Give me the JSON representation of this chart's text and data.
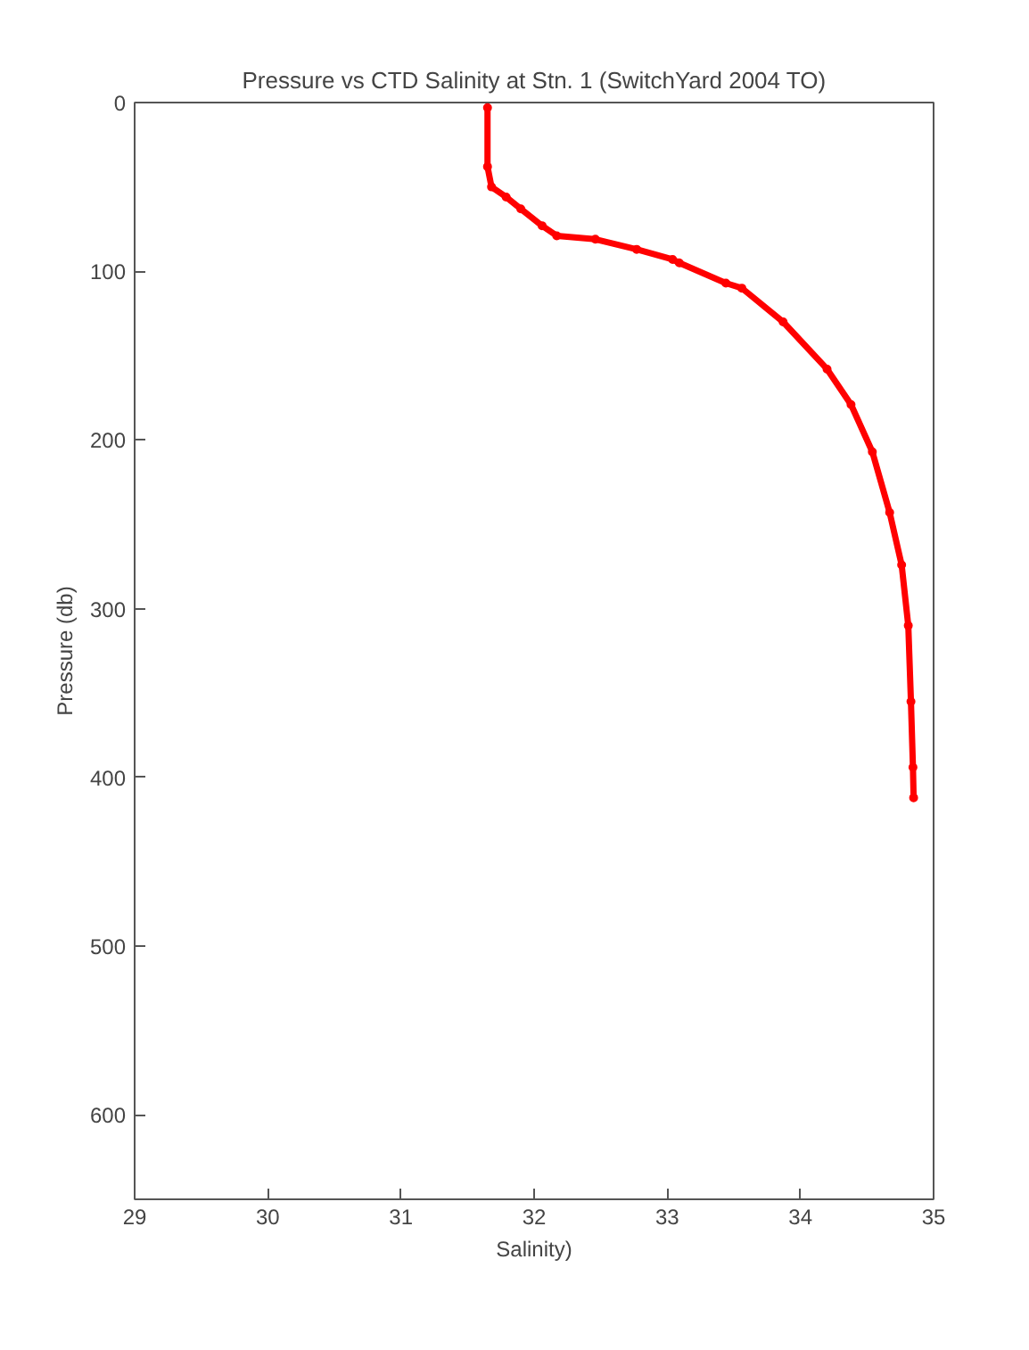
{
  "chart_data": {
    "type": "line",
    "title": "Pressure vs CTD Salinity at Stn. 1 (SwitchYard 2004 TO)",
    "xlabel": "Salinity)",
    "ylabel": "Pressure (db)",
    "xlim": [
      29,
      35
    ],
    "ylim": [
      650,
      0
    ],
    "xticks": [
      29,
      30,
      31,
      32,
      33,
      34,
      35
    ],
    "yticks": [
      0,
      100,
      200,
      300,
      400,
      500,
      600
    ],
    "grid": false,
    "marker": "circle",
    "line_style": "solid",
    "series": [
      {
        "color": "#ff0000",
        "x": [
          31.65,
          31.65,
          31.68,
          31.79,
          31.9,
          32.06,
          32.17,
          32.46,
          32.77,
          33.04,
          33.09,
          33.44,
          33.56,
          33.87,
          34.2,
          34.38,
          34.54,
          34.67,
          34.76,
          34.81,
          34.83,
          34.845,
          34.85
        ],
        "values": [
          3,
          38,
          50,
          56,
          63,
          73,
          79,
          81,
          87,
          93,
          95,
          107,
          110,
          130,
          158,
          179,
          207,
          243,
          274,
          310,
          355,
          394,
          412
        ]
      }
    ]
  }
}
